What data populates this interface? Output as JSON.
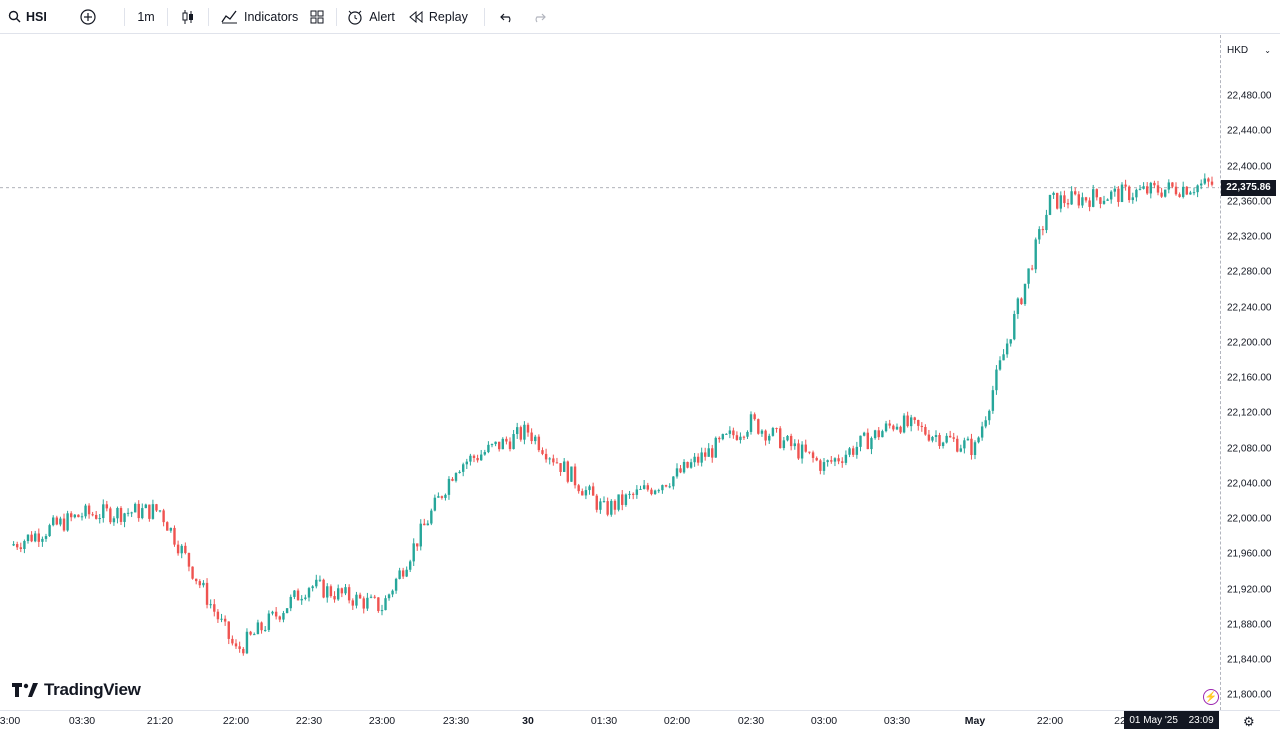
{
  "toolbar": {
    "symbol": "HSI",
    "interval": "1m",
    "indicators_label": "Indicators",
    "alert_label": "Alert",
    "replay_label": "Replay"
  },
  "price_axis": {
    "currency": "HKD",
    "labels": [
      "22,480.00",
      "22,440.00",
      "22,400.00",
      "22,360.00",
      "22,320.00",
      "22,280.00",
      "22,240.00",
      "22,200.00",
      "22,160.00",
      "22,120.00",
      "22,080.00",
      "22,040.00",
      "22,000.00",
      "21,960.00",
      "21,920.00",
      "21,880.00",
      "21,840.00",
      "21,800.00"
    ],
    "current_price": "22,375.86"
  },
  "time_axis": {
    "labels": [
      "3:00",
      "03:30",
      "21:20",
      "22:00",
      "22:30",
      "23:00",
      "23:30",
      "30",
      "01:30",
      "02:00",
      "02:30",
      "03:00",
      "03:30",
      "May",
      "22:00",
      "22"
    ],
    "crosshair_date": "01 May '25",
    "crosshair_time": "23:09"
  },
  "branding": {
    "logo_text": "TradingView"
  },
  "colors": {
    "up": "#26a69a",
    "down": "#ef5350",
    "text": "#131722"
  },
  "chart_data": {
    "type": "candlestick",
    "symbol": "HSI",
    "ylim": [
      21800,
      22480
    ],
    "current_price": 22375.86,
    "x": [
      "3:00",
      "03:30",
      "21:20",
      "22:00",
      "22:30",
      "23:00",
      "23:30",
      "30",
      "01:30",
      "02:00",
      "02:30",
      "03:00",
      "03:30",
      "May",
      "22:00",
      "22"
    ],
    "close": [
      21970,
      22005,
      22010,
      21850,
      21925,
      21900,
      22060,
      22100,
      22010,
      22050,
      22110,
      22060,
      22110,
      22080,
      22360,
      22380
    ]
  }
}
